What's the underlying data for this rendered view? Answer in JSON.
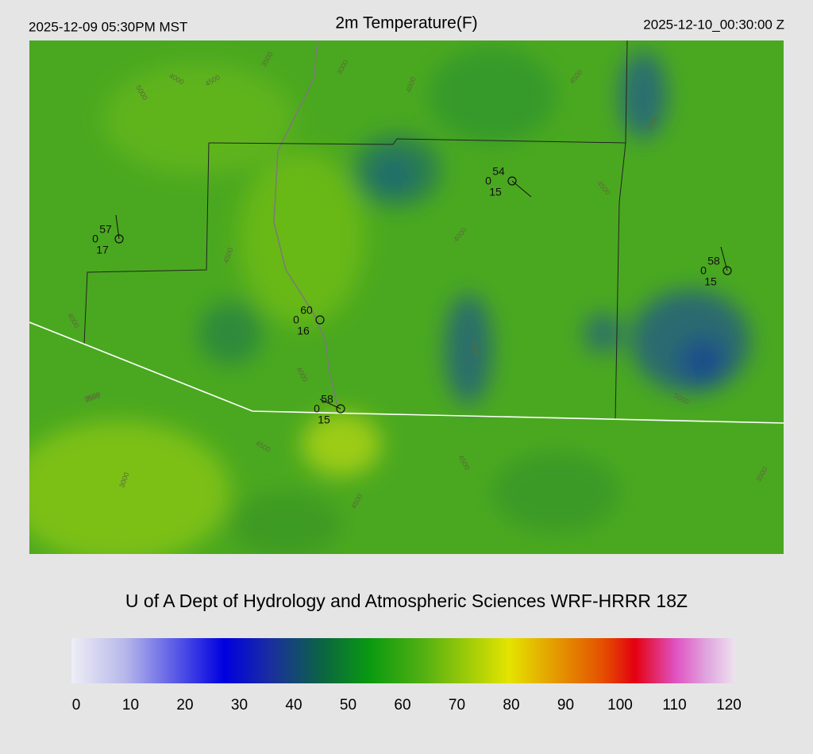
{
  "header": {
    "local_time": "2025-12-09 05:30PM MST",
    "title": "2m Temperature(F)",
    "valid_time": "2025-12-10_00:30:00 Z"
  },
  "map": {
    "stations": [
      {
        "temp": "57",
        "wind": "0",
        "dew": "17"
      },
      {
        "temp": "54",
        "wind": "0",
        "dew": "15"
      },
      {
        "temp": "58",
        "wind": "0",
        "dew": "15"
      },
      {
        "temp": "60",
        "wind": "0",
        "dew": "16"
      },
      {
        "temp": "58",
        "wind": "0",
        "dew": "15"
      }
    ],
    "contour_labels": [
      "3500",
      "4000",
      "4500",
      "3000",
      "4000",
      "3500",
      "5000",
      "4500",
      "4000",
      "4500",
      "3500",
      "4000",
      "4500",
      "3000",
      "4500",
      "4500",
      "5000",
      "4500",
      "5000",
      "4000",
      "3500",
      "5500"
    ]
  },
  "footer": "U of A Dept of Hydrology and Atmospheric Sciences WRF-HRRR 18Z",
  "colorbar": {
    "ticks": [
      "0",
      "10",
      "20",
      "30",
      "40",
      "50",
      "60",
      "70",
      "80",
      "90",
      "100",
      "110",
      "120"
    ]
  }
}
